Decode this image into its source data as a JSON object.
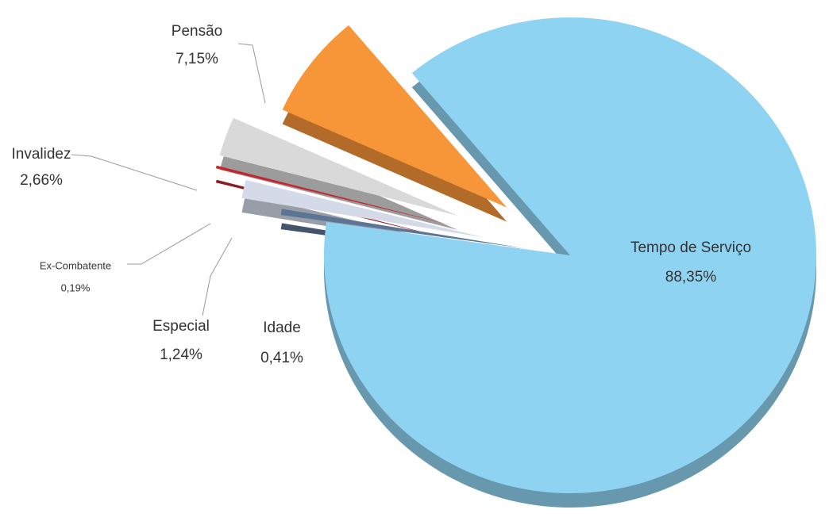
{
  "chart_data": {
    "type": "pie",
    "categories": [
      "Tempo de Serviço",
      "Idade",
      "Especial",
      "Ex-Combatente",
      "Invalidez",
      "Pensão"
    ],
    "values": [
      88.35,
      0.41,
      1.24,
      0.19,
      2.66,
      7.15
    ],
    "value_labels": [
      "88,35%",
      "0,41%",
      "1,24%",
      "0,19%",
      "2,66%",
      "7,15%"
    ],
    "colors": [
      "#8fd3f2",
      "#5d7595",
      "#d5dae8",
      "#c4262e",
      "#d9d9d9",
      "#f79539"
    ]
  }
}
